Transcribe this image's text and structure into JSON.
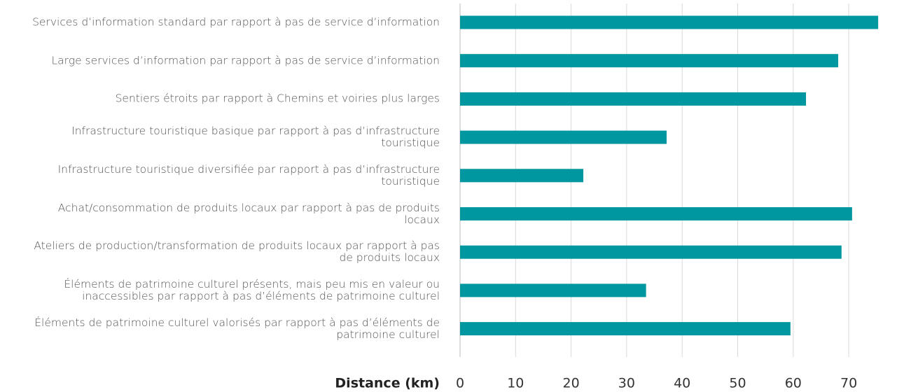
{
  "chart_data": {
    "type": "barh",
    "categories": [
      "Services d’information standard par rapport à pas de service d’information",
      "Large services d’information par rapport à pas de service d’information",
      "Sentiers étroits par rapport à Chemins et voiries plus larges",
      "Infrastructure touristique basique par rapport à pas d’infrastructure touristique",
      "Infrastructure touristique diversifiée par rapport à pas d’infrastructure touristique",
      "Achat/consommation de produits locaux par rapport à pas de produits locaux",
      "Ateliers de production/transformation de produits locaux par rapport à pas de produits locaux",
      "Éléments de patrimoine culturel présents, mais peu mis en valeur ou inaccessibles par rapport à pas d’éléments de patrimoine culturel",
      "Éléments de patrimoine culturel valorisés par rapport à pas d’éléments de patrimoine culturel"
    ],
    "values": [
      75.3,
      68.1,
      62.3,
      37.2,
      22.2,
      70.6,
      68.7,
      33.5,
      59.5
    ],
    "color": "#0097a0",
    "xlabel": "Distance (km)",
    "xlim": [
      0,
      77
    ],
    "xticks": [
      0,
      10,
      20,
      30,
      40,
      50,
      60,
      70
    ],
    "grid": true
  }
}
